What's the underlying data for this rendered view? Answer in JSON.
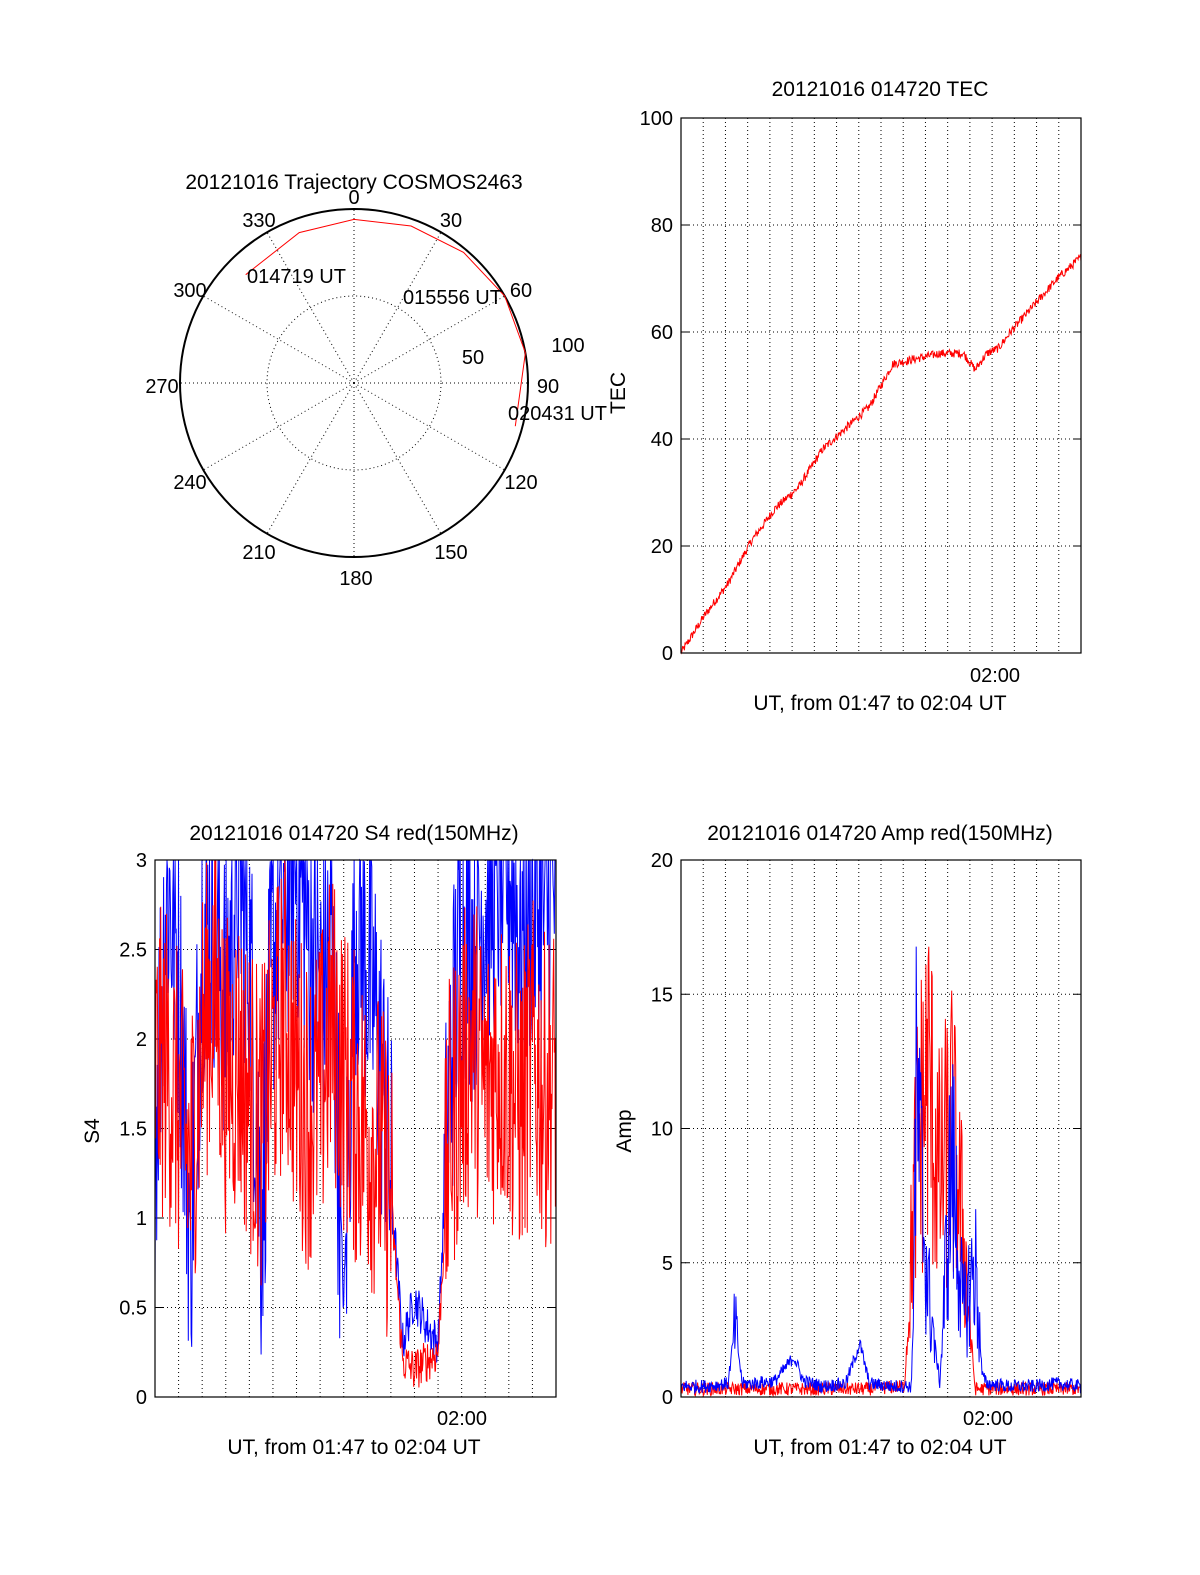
{
  "colors": {
    "red": "#ff0000",
    "blue": "#0000ff",
    "axis": "#000000"
  },
  "chart_data": [
    {
      "type": "polar",
      "title": "20121016 Trajectory COSMOS2463",
      "azimuth_labels": [
        "0",
        "30",
        "60",
        "90",
        "120",
        "150",
        "180",
        "210",
        "240",
        "270",
        "300",
        "330"
      ],
      "ring_labels": [
        "50",
        "100"
      ],
      "annotations": [
        "014719 UT",
        "015556 UT",
        "020431 UT"
      ],
      "series": [
        {
          "color": "#ff0000",
          "points_az_deg_elev_ring": [
            [
              -45,
              88
            ],
            [
              -20,
              92
            ],
            [
              0,
              94
            ],
            [
              20,
              96
            ],
            [
              40,
              98
            ],
            [
              60,
              100
            ],
            [
              80,
              100
            ],
            [
              105,
              96
            ]
          ]
        }
      ]
    },
    {
      "type": "line",
      "title": "20121016 014720 TEC",
      "ylabel": "TEC",
      "xlabel": "UT, from 01:47 to 02:04 UT",
      "xtick_label": "02:00",
      "xlim": [
        0,
        17
      ],
      "ylim": [
        0,
        100
      ],
      "yticks": [
        "0",
        "20",
        "40",
        "60",
        "80",
        "100"
      ],
      "series": [
        {
          "color": "#ff0000",
          "x": [
            0,
            1,
            2,
            3,
            4,
            5,
            6,
            7,
            8,
            9,
            10,
            11,
            12,
            12.5,
            13,
            13.5,
            14,
            15,
            16,
            17
          ],
          "y": [
            0,
            7,
            13,
            21,
            27,
            31,
            38,
            42,
            46,
            54,
            55,
            56,
            56,
            53,
            56,
            57,
            60,
            65,
            70,
            74
          ]
        }
      ]
    },
    {
      "type": "line",
      "title": "20121016 014720 S4 red(150MHz)",
      "ylabel": "S4",
      "xlabel": "UT, from 01:47 to 02:04 UT",
      "xtick_label": "02:00",
      "xlim": [
        0,
        17
      ],
      "ylim": [
        0,
        3
      ],
      "yticks": [
        "0",
        "0.5",
        "1",
        "1.5",
        "2",
        "2.5",
        "3"
      ],
      "series": [
        {
          "color": "#0000ff",
          "x": [
            0,
            0.5,
            1,
            1.5,
            2,
            2.5,
            3,
            3.5,
            4,
            4.5,
            5,
            5.5,
            6,
            6.5,
            7,
            7.5,
            8,
            8.5,
            9,
            9.5,
            10,
            10.5,
            11,
            11.5,
            12,
            12.5,
            13,
            13.5,
            14,
            14.5,
            15,
            15.5,
            16,
            16.5,
            17
          ],
          "y": [
            1.5,
            2.9,
            2.4,
            0.9,
            2.6,
            2.7,
            2.2,
            3.0,
            2.5,
            1.0,
            2.5,
            2.8,
            3.0,
            2.6,
            2.3,
            2.5,
            0.5,
            2.7,
            2.4,
            2.0,
            1.2,
            0.3,
            0.55,
            0.4,
            0.3,
            1.8,
            2.7,
            2.5,
            2.8,
            2.9,
            3.0,
            2.6,
            2.8,
            2.7,
            2.9
          ]
        },
        {
          "color": "#ff0000",
          "x": [
            0,
            0.5,
            1,
            1.5,
            2,
            2.5,
            3,
            3.5,
            4,
            4.5,
            5,
            5.5,
            6,
            6.5,
            7,
            7.5,
            8,
            8.5,
            9,
            9.5,
            10,
            10.5,
            11,
            11.5,
            12,
            12.5,
            13,
            13.5,
            14,
            14.5,
            15,
            15.5,
            16,
            16.5,
            17
          ],
          "y": [
            1.8,
            1.9,
            1.6,
            1.3,
            2.0,
            2.3,
            1.8,
            1.9,
            1.7,
            1.5,
            1.9,
            2.2,
            1.8,
            1.6,
            1.7,
            2.1,
            1.8,
            1.6,
            1.5,
            1.4,
            1.1,
            0.2,
            0.15,
            0.2,
            0.25,
            1.5,
            1.8,
            2.0,
            1.7,
            1.9,
            1.8,
            1.6,
            1.9,
            1.7,
            1.8
          ]
        }
      ]
    },
    {
      "type": "line",
      "title": "20121016 014720 Amp red(150MHz)",
      "ylabel": "Amp",
      "xlabel": "UT, from 01:47 to 02:04 UT",
      "xtick_label": "02:00",
      "xlim": [
        0,
        17
      ],
      "ylim": [
        0,
        20
      ],
      "yticks": [
        "0",
        "5",
        "10",
        "15",
        "20"
      ],
      "series": [
        {
          "color": "#ff0000",
          "x": [
            0,
            2,
            4,
            6,
            8,
            9.5,
            10,
            10.5,
            11,
            11.5,
            12,
            12.5,
            13,
            15,
            17
          ],
          "y": [
            0.3,
            0.3,
            0.3,
            0.3,
            0.3,
            0.4,
            9,
            12,
            8,
            10,
            6,
            0.3,
            0.3,
            0.3,
            0.3
          ]
        },
        {
          "color": "#0000ff",
          "x": [
            0,
            1,
            2,
            2.3,
            2.6,
            3,
            4,
            4.8,
            5.2,
            6,
            7,
            7.6,
            8,
            9,
            9.8,
            10,
            10.5,
            11,
            11.5,
            12,
            12.5,
            12.8,
            13,
            14,
            15,
            16,
            17
          ],
          "y": [
            0.4,
            0.4,
            0.5,
            2.7,
            0.5,
            0.5,
            0.6,
            1.5,
            0.6,
            0.4,
            0.5,
            2.0,
            0.5,
            0.4,
            0.4,
            11,
            4,
            0.5,
            9,
            3,
            5,
            0.8,
            0.5,
            0.4,
            0.4,
            0.5,
            0.4
          ]
        }
      ]
    }
  ]
}
